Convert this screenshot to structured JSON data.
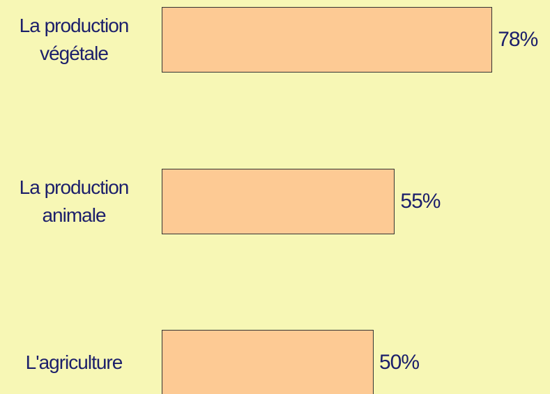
{
  "chart_data": {
    "type": "bar",
    "categories": [
      "La production végétale",
      "La production animale",
      "L'agriculture"
    ],
    "values": [
      78,
      55,
      50
    ],
    "value_labels": [
      "78%",
      "55%",
      "50%"
    ],
    "color": "#fdca94"
  }
}
